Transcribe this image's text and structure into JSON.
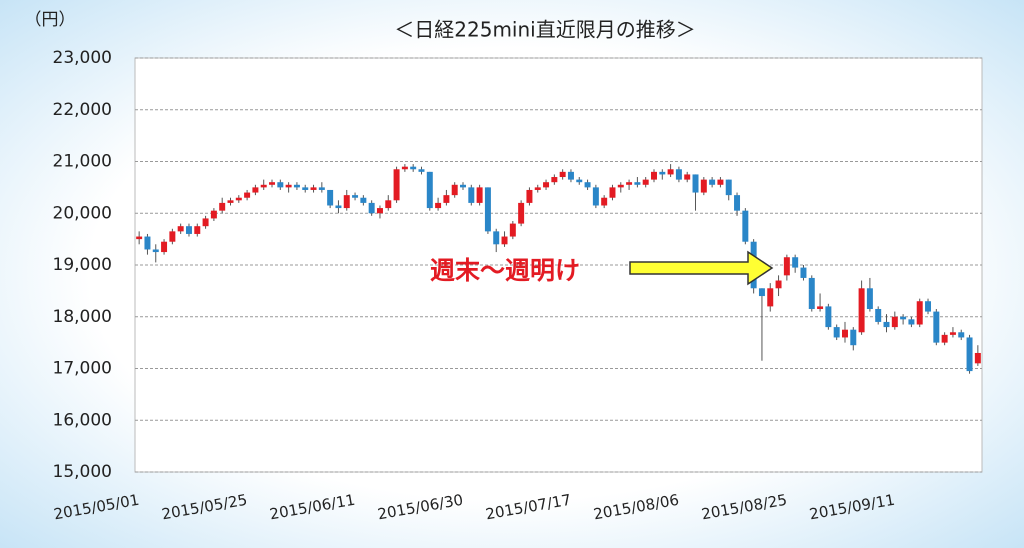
{
  "chart_data": {
    "type": "candlestick",
    "title": "＜日経225mini直近限月の推移＞",
    "y_label": "（円）",
    "annotation": "週末～週明け",
    "up_color": "#e31b23",
    "down_color": "#2a86c8",
    "grid": true,
    "ylim": [
      15000,
      23000
    ],
    "yticks": [
      {
        "value": 15000,
        "label": "15,000"
      },
      {
        "value": 16000,
        "label": "16,000"
      },
      {
        "value": 17000,
        "label": "17,000"
      },
      {
        "value": 18000,
        "label": "18,000"
      },
      {
        "value": 19000,
        "label": "19,000"
      },
      {
        "value": 20000,
        "label": "20,000"
      },
      {
        "value": 21000,
        "label": "21,000"
      },
      {
        "value": 22000,
        "label": "22,000"
      },
      {
        "value": 23000,
        "label": "23,000"
      }
    ],
    "categories": [
      "2015/05/01",
      null,
      null,
      null,
      null,
      null,
      null,
      null,
      null,
      null,
      null,
      null,
      null,
      "2015/05/25",
      null,
      null,
      null,
      null,
      null,
      null,
      null,
      null,
      null,
      null,
      null,
      null,
      "2015/06/11",
      null,
      null,
      null,
      null,
      null,
      null,
      null,
      null,
      null,
      null,
      null,
      null,
      "2015/06/30",
      null,
      null,
      null,
      null,
      null,
      null,
      null,
      null,
      null,
      null,
      null,
      null,
      "2015/07/17",
      null,
      null,
      null,
      null,
      null,
      null,
      null,
      null,
      null,
      null,
      null,
      null,
      "2015/08/06",
      null,
      null,
      null,
      null,
      null,
      null,
      null,
      null,
      null,
      null,
      null,
      null,
      "2015/08/25",
      null,
      null,
      null,
      null,
      null,
      null,
      null,
      null,
      null,
      null,
      null,
      null,
      "2015/09/11",
      null,
      null,
      null,
      null,
      null,
      null,
      null,
      null,
      null,
      null
    ],
    "ohlc": [
      [
        19500,
        19650,
        19400,
        19550
      ],
      [
        19550,
        19600,
        19200,
        19300
      ],
      [
        19300,
        19400,
        19050,
        19250
      ],
      [
        19250,
        19500,
        19200,
        19450
      ],
      [
        19450,
        19700,
        19400,
        19650
      ],
      [
        19650,
        19800,
        19600,
        19750
      ],
      [
        19750,
        19800,
        19550,
        19600
      ],
      [
        19600,
        19800,
        19550,
        19750
      ],
      [
        19750,
        19950,
        19700,
        19900
      ],
      [
        19900,
        20100,
        19850,
        20050
      ],
      [
        20050,
        20300,
        20000,
        20200
      ],
      [
        20200,
        20300,
        20150,
        20250
      ],
      [
        20250,
        20350,
        20200,
        20300
      ],
      [
        20300,
        20450,
        20250,
        20400
      ],
      [
        20400,
        20550,
        20350,
        20500
      ],
      [
        20500,
        20650,
        20450,
        20550
      ],
      [
        20550,
        20650,
        20500,
        20600
      ],
      [
        20600,
        20650,
        20450,
        20500
      ],
      [
        20500,
        20600,
        20400,
        20550
      ],
      [
        20550,
        20600,
        20450,
        20500
      ],
      [
        20500,
        20550,
        20400,
        20450
      ],
      [
        20450,
        20550,
        20400,
        20500
      ],
      [
        20500,
        20600,
        20400,
        20450
      ],
      [
        20450,
        20450,
        20100,
        20150
      ],
      [
        20150,
        20250,
        20000,
        20100
      ],
      [
        20100,
        20450,
        20050,
        20350
      ],
      [
        20350,
        20400,
        20250,
        20300
      ],
      [
        20300,
        20350,
        20150,
        20200
      ],
      [
        20200,
        20250,
        19950,
        20000
      ],
      [
        20000,
        20150,
        19900,
        20100
      ],
      [
        20100,
        20350,
        20050,
        20250
      ],
      [
        20250,
        20900,
        20200,
        20850
      ],
      [
        20850,
        20950,
        20800,
        20900
      ],
      [
        20900,
        20950,
        20800,
        20850
      ],
      [
        20850,
        20900,
        20750,
        20800
      ],
      [
        20800,
        20800,
        20050,
        20100
      ],
      [
        20100,
        20300,
        20050,
        20200
      ],
      [
        20200,
        20450,
        20150,
        20350
      ],
      [
        20350,
        20600,
        20300,
        20550
      ],
      [
        20550,
        20600,
        20450,
        20500
      ],
      [
        20500,
        20550,
        20150,
        20200
      ],
      [
        20200,
        20550,
        20150,
        20500
      ],
      [
        20500,
        20500,
        19600,
        19650
      ],
      [
        19650,
        19700,
        19250,
        19400
      ],
      [
        19400,
        19650,
        19350,
        19550
      ],
      [
        19550,
        19850,
        19500,
        19800
      ],
      [
        19800,
        20250,
        19750,
        20200
      ],
      [
        20200,
        20500,
        20150,
        20450
      ],
      [
        20450,
        20550,
        20400,
        20500
      ],
      [
        20500,
        20650,
        20450,
        20600
      ],
      [
        20600,
        20750,
        20550,
        20700
      ],
      [
        20700,
        20850,
        20650,
        20800
      ],
      [
        20800,
        20850,
        20600,
        20650
      ],
      [
        20650,
        20700,
        20550,
        20600
      ],
      [
        20600,
        20650,
        20450,
        20500
      ],
      [
        20500,
        20550,
        20100,
        20150
      ],
      [
        20150,
        20350,
        20100,
        20300
      ],
      [
        20300,
        20550,
        20250,
        20500
      ],
      [
        20500,
        20600,
        20400,
        20550
      ],
      [
        20550,
        20650,
        20450,
        20600
      ],
      [
        20600,
        20700,
        20500,
        20550
      ],
      [
        20550,
        20700,
        20500,
        20650
      ],
      [
        20650,
        20850,
        20600,
        20800
      ],
      [
        20800,
        20850,
        20650,
        20750
      ],
      [
        20750,
        20950,
        20700,
        20850
      ],
      [
        20850,
        20900,
        20600,
        20650
      ],
      [
        20650,
        20800,
        20600,
        20750
      ],
      [
        20750,
        20750,
        20050,
        20400
      ],
      [
        20400,
        20700,
        20350,
        20650
      ],
      [
        20650,
        20700,
        20500,
        20550
      ],
      [
        20550,
        20700,
        20500,
        20650
      ],
      [
        20650,
        20650,
        20250,
        20350
      ],
      [
        20350,
        20400,
        19950,
        20050
      ],
      [
        20050,
        20100,
        19400,
        19450
      ],
      [
        19450,
        19500,
        18450,
        18550
      ],
      [
        18550,
        18550,
        17150,
        18400
      ],
      [
        18200,
        18650,
        18100,
        18550
      ],
      [
        18550,
        18800,
        18400,
        18700
      ],
      [
        18800,
        19200,
        18700,
        19150
      ],
      [
        19150,
        19200,
        18850,
        18950
      ],
      [
        18950,
        19000,
        18700,
        18750
      ],
      [
        18750,
        18800,
        18100,
        18150
      ],
      [
        18150,
        18450,
        18100,
        18200
      ],
      [
        18200,
        18250,
        17750,
        17800
      ],
      [
        17800,
        17850,
        17550,
        17600
      ],
      [
        17600,
        17900,
        17500,
        17750
      ],
      [
        17750,
        17800,
        17350,
        17450
      ],
      [
        17700,
        18700,
        17650,
        18550
      ],
      [
        18550,
        18750,
        18100,
        18150
      ],
      [
        18150,
        18200,
        17850,
        17900
      ],
      [
        17900,
        18050,
        17700,
        17800
      ],
      [
        17800,
        18100,
        17750,
        18000
      ],
      [
        18000,
        18050,
        17850,
        17950
      ],
      [
        17950,
        18000,
        17800,
        17850
      ],
      [
        17850,
        18350,
        17800,
        18300
      ],
      [
        18300,
        18350,
        18050,
        18100
      ],
      [
        18100,
        18150,
        17450,
        17500
      ],
      [
        17500,
        17700,
        17450,
        17650
      ],
      [
        17650,
        17800,
        17600,
        17700
      ],
      [
        17700,
        17750,
        17550,
        17600
      ],
      [
        17600,
        17650,
        16900,
        16950
      ],
      [
        17100,
        17450,
        17050,
        17300
      ]
    ]
  }
}
